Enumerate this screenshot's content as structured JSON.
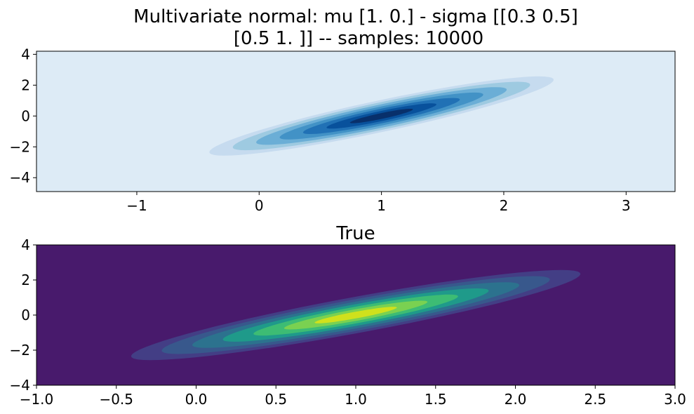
{
  "figure": {
    "suptitle_line1": "Multivariate normal: mu [1. 0.] - sigma [[0.3 0.5]",
    "suptitle_line2": "[0.5 1. ]] -- samples: 10000"
  },
  "chart_data": [
    {
      "type": "contour",
      "title": "",
      "subtitle_of": "figure.suptitle",
      "xlabel": "",
      "ylabel": "",
      "xlim": [
        -1.82,
        3.4
      ],
      "ylim": [
        -4.9,
        4.2
      ],
      "xticks": [
        -1,
        0,
        1,
        2,
        3
      ],
      "xtick_labels": [
        "−1",
        "0",
        "1",
        "2",
        "3"
      ],
      "yticks": [
        4,
        2,
        0,
        -2,
        -4
      ],
      "ytick_labels": [
        "4",
        "2",
        "0",
        "−2",
        "−4"
      ],
      "colormap": "Blues",
      "grid": false,
      "legend": "none",
      "distribution": {
        "kind": "kde of samples",
        "mean": [
          1.0,
          0.0
        ],
        "cov": [
          [
            0.3,
            0.5
          ],
          [
            0.5,
            1.0
          ]
        ],
        "samples": 10000,
        "support_x": [
          -0.15,
          2.2
        ],
        "support_y": [
          -2.2,
          2.2
        ]
      },
      "levels": 8,
      "colors": [
        "#deebf7",
        "#c6dbef",
        "#9ecae1",
        "#6baed6",
        "#4292c6",
        "#2171b5",
        "#08519c",
        "#08306b"
      ]
    },
    {
      "type": "contour",
      "title": "True",
      "xlabel": "",
      "ylabel": "",
      "xlim": [
        -1.0,
        3.0
      ],
      "ylim": [
        -4.0,
        4.0
      ],
      "xticks": [
        -1.0,
        -0.5,
        0.0,
        0.5,
        1.0,
        1.5,
        2.0,
        2.5,
        3.0
      ],
      "xtick_labels": [
        "−1.0",
        "−0.5",
        "0.0",
        "0.5",
        "1.0",
        "1.5",
        "2.0",
        "2.5",
        "3.0"
      ],
      "yticks": [
        4,
        2,
        0,
        -2,
        -4
      ],
      "ytick_labels": [
        "4",
        "2",
        "0",
        "−2",
        "−4"
      ],
      "colormap": "viridis",
      "grid": false,
      "legend": "none",
      "distribution": {
        "kind": "exact pdf",
        "mean": [
          1.0,
          0.0
        ],
        "cov": [
          [
            0.3,
            0.5
          ],
          [
            0.5,
            1.0
          ]
        ]
      },
      "levels": 8,
      "colors": [
        "#481a6c",
        "#433e85",
        "#38588c",
        "#2c728e",
        "#1f9a8a",
        "#3dbc74",
        "#7ad151",
        "#d0e11c"
      ]
    }
  ]
}
